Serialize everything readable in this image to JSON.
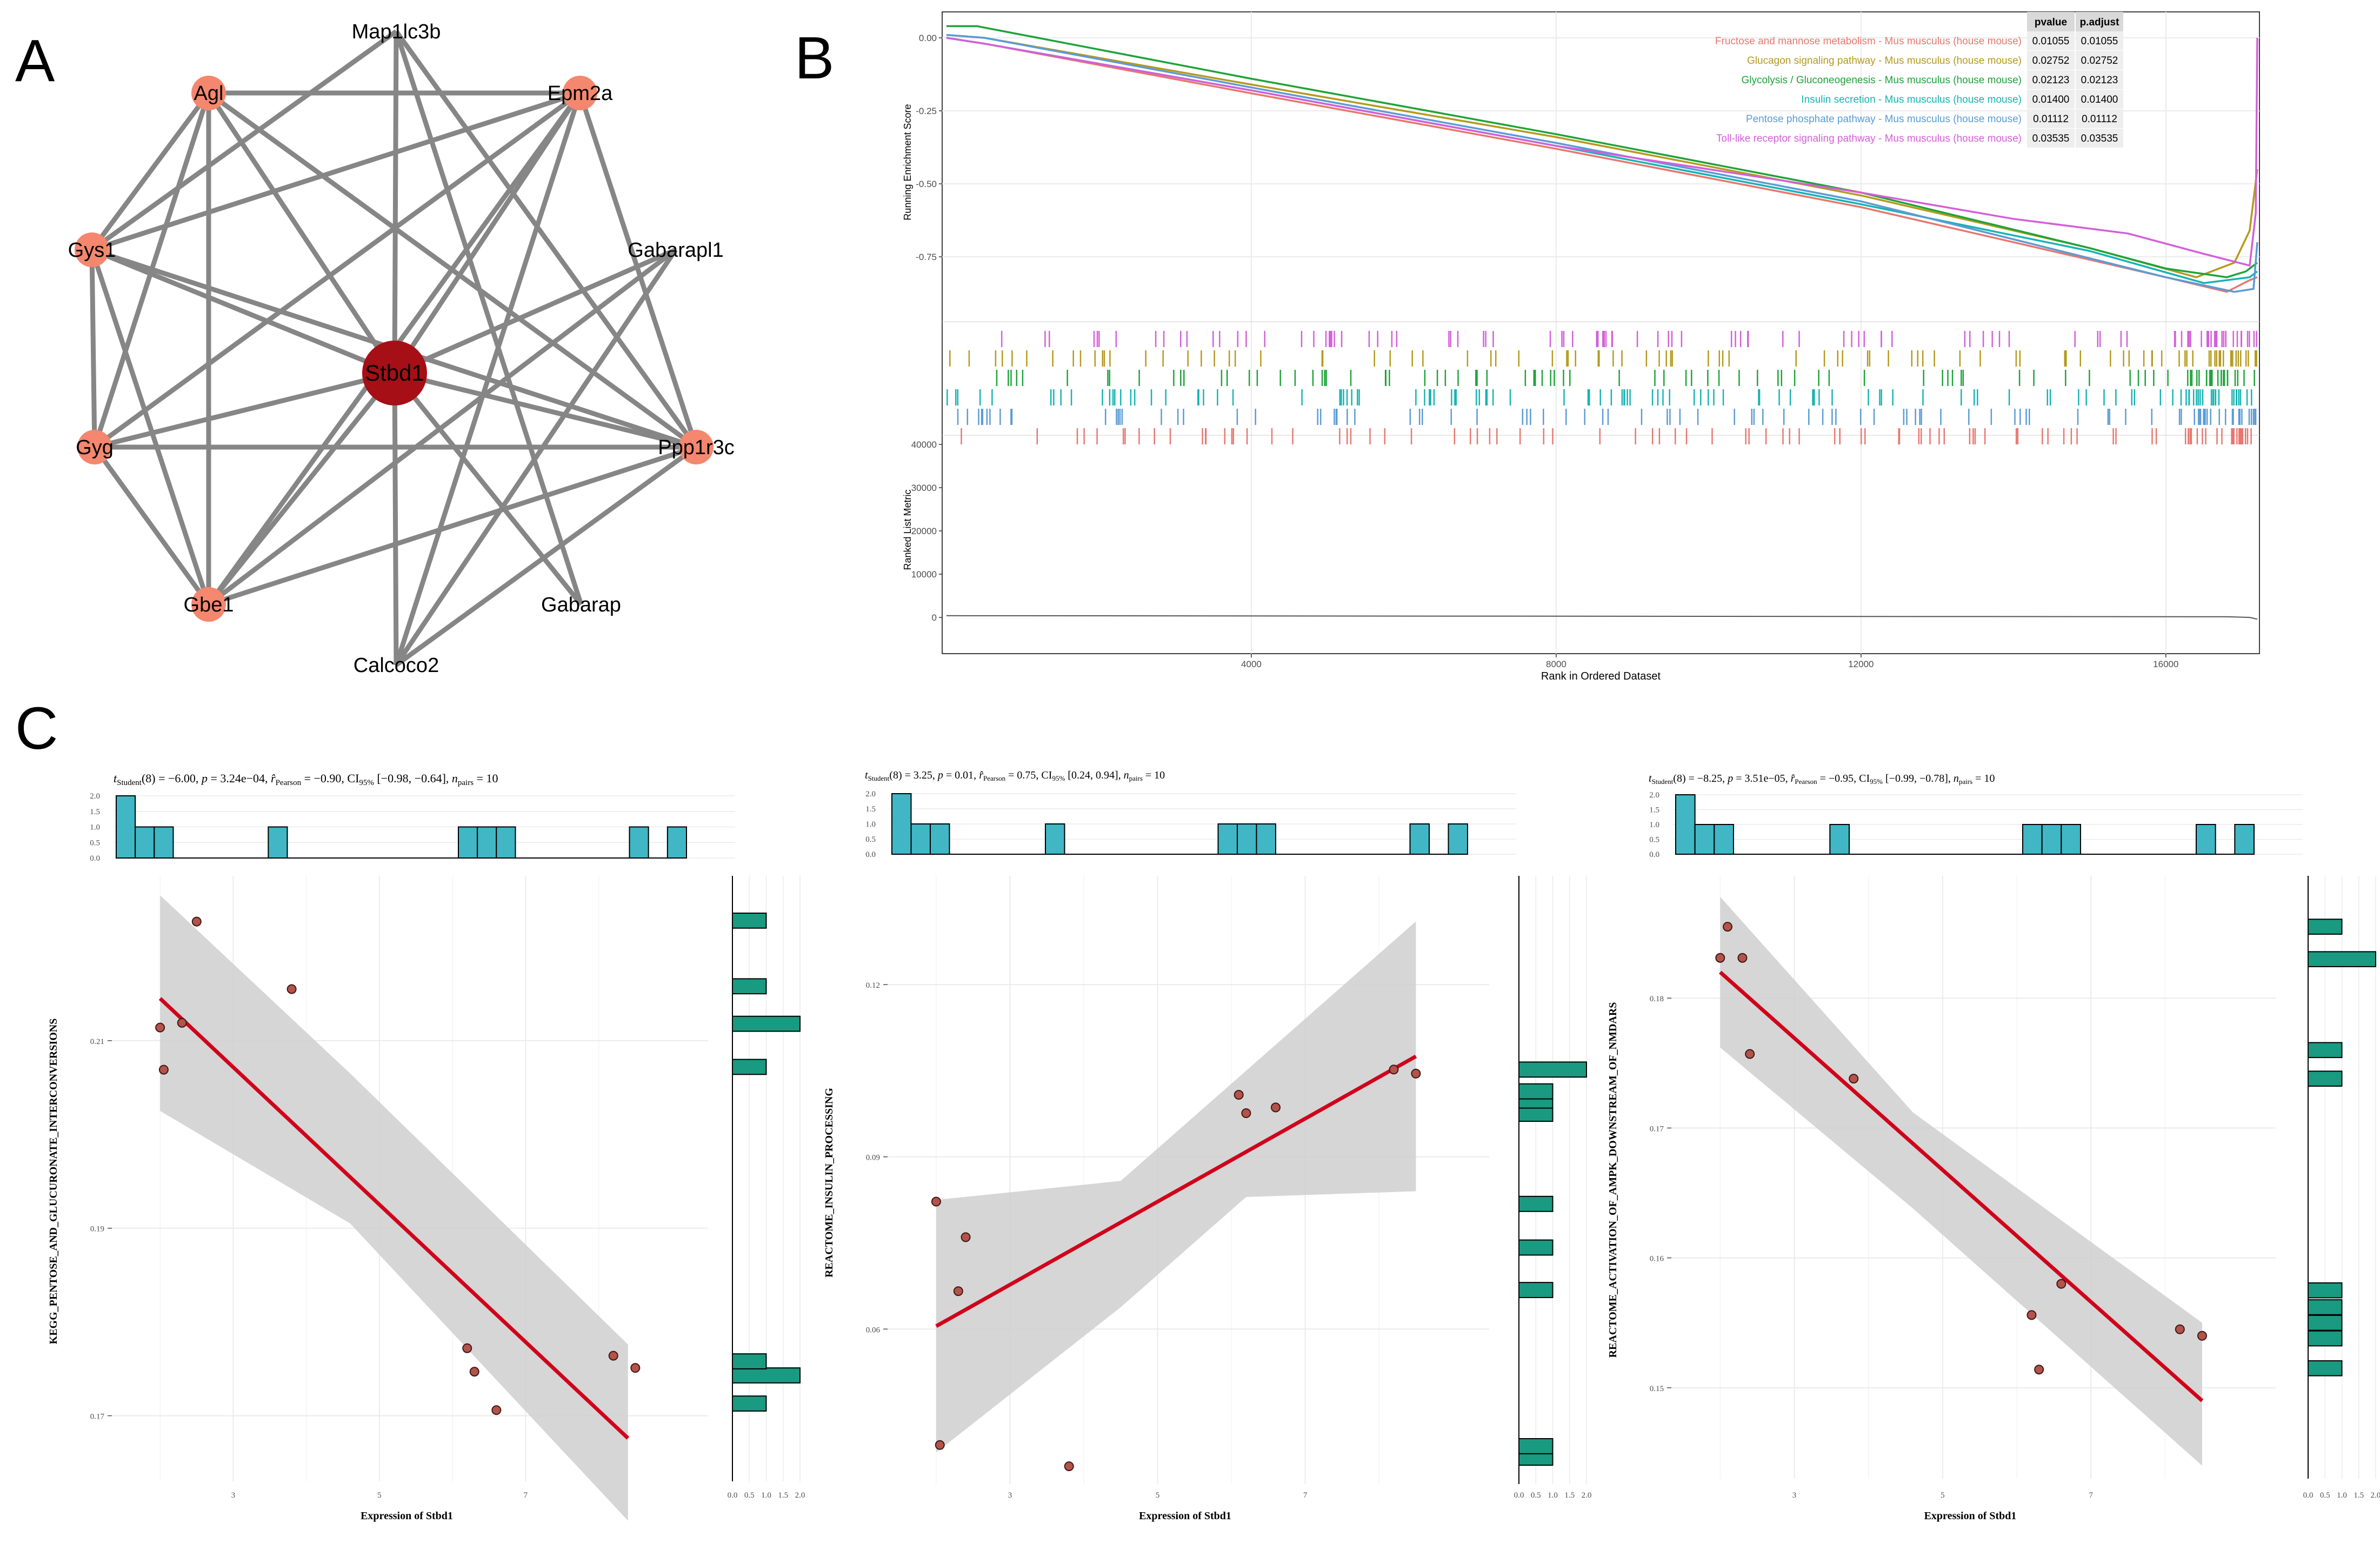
{
  "panels": {
    "a": "A",
    "b": "B",
    "c": "C"
  },
  "network": {
    "hub": "Stbd1",
    "nodes": [
      {
        "id": "Map1lc3b",
        "marker": false,
        "color": "#f4876e"
      },
      {
        "id": "Agl",
        "marker": true,
        "color": "#f4876e"
      },
      {
        "id": "Epm2a",
        "marker": true,
        "color": "#f4876e"
      },
      {
        "id": "Gys1",
        "marker": true,
        "color": "#f4876e"
      },
      {
        "id": "Gabarapl1",
        "marker": false,
        "color": "#f4876e"
      },
      {
        "id": "Stbd1",
        "marker": true,
        "color": "#a50f15"
      },
      {
        "id": "Gyg",
        "marker": true,
        "color": "#f4876e"
      },
      {
        "id": "Ppp1r3c",
        "marker": true,
        "color": "#f4876e"
      },
      {
        "id": "Gbe1",
        "marker": true,
        "color": "#f4876e"
      },
      {
        "id": "Gabarap",
        "marker": false,
        "color": "#f4876e"
      },
      {
        "id": "Calcoco2",
        "marker": false,
        "color": "#f4876e"
      }
    ],
    "edges": [
      [
        "Agl",
        "Epm2a"
      ],
      [
        "Agl",
        "Gys1"
      ],
      [
        "Agl",
        "Gyg"
      ],
      [
        "Agl",
        "Gbe1"
      ],
      [
        "Agl",
        "Stbd1"
      ],
      [
        "Agl",
        "Ppp1r3c"
      ],
      [
        "Map1lc3b",
        "Stbd1"
      ],
      [
        "Map1lc3b",
        "Gys1"
      ],
      [
        "Map1lc3b",
        "Ppp1r3c"
      ],
      [
        "Map1lc3b",
        "Gabarap"
      ],
      [
        "Epm2a",
        "Gys1"
      ],
      [
        "Epm2a",
        "Gyg"
      ],
      [
        "Epm2a",
        "Gbe1"
      ],
      [
        "Epm2a",
        "Stbd1"
      ],
      [
        "Epm2a",
        "Ppp1r3c"
      ],
      [
        "Epm2a",
        "Calcoco2"
      ],
      [
        "Gys1",
        "Gyg"
      ],
      [
        "Gys1",
        "Gbe1"
      ],
      [
        "Gys1",
        "Stbd1"
      ],
      [
        "Gys1",
        "Ppp1r3c"
      ],
      [
        "Gabarapl1",
        "Stbd1"
      ],
      [
        "Gabarapl1",
        "Gbe1"
      ],
      [
        "Gabarapl1",
        "Calcoco2"
      ],
      [
        "Gyg",
        "Gbe1"
      ],
      [
        "Gyg",
        "Stbd1"
      ],
      [
        "Gyg",
        "Ppp1r3c"
      ],
      [
        "Stbd1",
        "Ppp1r3c"
      ],
      [
        "Stbd1",
        "Gbe1"
      ],
      [
        "Stbd1",
        "Gabarap"
      ],
      [
        "Stbd1",
        "Calcoco2"
      ],
      [
        "Ppp1r3c",
        "Gbe1"
      ],
      [
        "Ppp1r3c",
        "Calcoco2"
      ]
    ]
  },
  "gsea": {
    "y_label": "Running Enrichment Score",
    "y_ticks": [
      "0.00",
      "-0.25",
      "-0.50",
      "-0.75"
    ],
    "table_headers": [
      "pvalue",
      "p.adjust"
    ],
    "metric_label": "Ranked List Metric",
    "metric_ticks": [
      "40000",
      "30000",
      "20000",
      "10000",
      "0"
    ],
    "x_label": "Rank in Ordered Dataset",
    "x_ticks": [
      "4000",
      "8000",
      "12000",
      "16000"
    ]
  },
  "chart_data": [
    {
      "type": "line",
      "title": "",
      "xlabel": "Rank in Ordered Dataset",
      "ylabel": "Running Enrichment Score",
      "xlim": [
        0,
        17200
      ],
      "ylim": [
        -0.92,
        0.05
      ],
      "series": [
        {
          "name": "Fructose and mannose metabolism - Mus musculus (house mouse)",
          "pvalue": "0.01055",
          "padjust": "0.01055",
          "color": "#e8776f",
          "points": [
            [
              0,
              0
            ],
            [
              500,
              -0.02
            ],
            [
              4000,
              -0.19
            ],
            [
              8000,
              -0.38
            ],
            [
              12000,
              -0.58
            ],
            [
              16000,
              -0.82
            ],
            [
              16800,
              -0.87
            ],
            [
              17100,
              -0.83
            ],
            [
              17200,
              -0.82
            ]
          ]
        },
        {
          "name": "Glucagon signaling pathway - Mus musculus (house mouse)",
          "pvalue": "0.02752",
          "padjust": "0.02752",
          "color": "#b59a1d",
          "points": [
            [
              0,
              0.01
            ],
            [
              500,
              0.0
            ],
            [
              4000,
              -0.16
            ],
            [
              8000,
              -0.34
            ],
            [
              12000,
              -0.54
            ],
            [
              15000,
              -0.72
            ],
            [
              16400,
              -0.82
            ],
            [
              16900,
              -0.77
            ],
            [
              17100,
              -0.66
            ],
            [
              17200,
              -0.45
            ]
          ]
        },
        {
          "name": "Glycolysis / Gluconeogenesis - Mus musculus (house mouse)",
          "pvalue": "0.02123",
          "padjust": "0.02123",
          "color": "#1fa33a",
          "points": [
            [
              0,
              0.04
            ],
            [
              400,
              0.04
            ],
            [
              4000,
              -0.14
            ],
            [
              8000,
              -0.33
            ],
            [
              12000,
              -0.53
            ],
            [
              15000,
              -0.72
            ],
            [
              16000,
              -0.79
            ],
            [
              16800,
              -0.82
            ],
            [
              17050,
              -0.8
            ],
            [
              17200,
              -0.77
            ]
          ]
        },
        {
          "name": "Insulin secretion - Mus musculus (house mouse)",
          "pvalue": "0.01400",
          "padjust": "0.01400",
          "color": "#17b3b3",
          "points": [
            [
              0,
              0
            ],
            [
              500,
              -0.02
            ],
            [
              4000,
              -0.18
            ],
            [
              8000,
              -0.37
            ],
            [
              12000,
              -0.57
            ],
            [
              15000,
              -0.73
            ],
            [
              16500,
              -0.84
            ],
            [
              17100,
              -0.82
            ],
            [
              17200,
              -0.8
            ]
          ]
        },
        {
          "name": "Pentose phosphate pathway - Mus musculus (house mouse)",
          "pvalue": "0.01112",
          "padjust": "0.01112",
          "color": "#5b9bd5",
          "points": [
            [
              0,
              0.01
            ],
            [
              500,
              0.0
            ],
            [
              4000,
              -0.17
            ],
            [
              8000,
              -0.36
            ],
            [
              12000,
              -0.56
            ],
            [
              16000,
              -0.82
            ],
            [
              16900,
              -0.87
            ],
            [
              17150,
              -0.86
            ],
            [
              17200,
              -0.7
            ]
          ]
        },
        {
          "name": "Toll-like receptor signaling pathway - Mus musculus (house mouse)",
          "pvalue": "0.03535",
          "padjust": "0.03535",
          "color": "#d45fd8",
          "points": [
            [
              0,
              0
            ],
            [
              500,
              -0.02
            ],
            [
              4000,
              -0.18
            ],
            [
              8000,
              -0.37
            ],
            [
              12000,
              -0.53
            ],
            [
              14000,
              -0.62
            ],
            [
              15500,
              -0.67
            ],
            [
              16500,
              -0.74
            ],
            [
              17100,
              -0.78
            ],
            [
              17180,
              -0.6
            ],
            [
              17200,
              0.0
            ]
          ]
        }
      ]
    },
    {
      "type": "scatter",
      "title_html": "<tspan font-style='italic'>t</tspan><tspan font-size='15' dy='5'>Student</tspan><tspan dy='-5'>(8) = −6.00, </tspan><tspan font-style='italic'>p</tspan><tspan> = 3.24e−04, </tspan><tspan font-style='italic'>r̂</tspan><tspan font-size='15' dy='5'>Pearson</tspan><tspan dy='-5'> = −0.90, CI</tspan><tspan font-size='15' dy='5'>95%</tspan><tspan dy='-5'> [−0.98, −0.64], </tspan><tspan font-style='italic'>n</tspan><tspan font-size='15' dy='5'>pairs</tspan><tspan dy='-5'> = 10</tspan>",
      "xlabel": "Expression of Stbd1",
      "ylabel": "KEGG_PENTOSE_AND_GLUCURONATE_INTERCONVERSIONS",
      "xlim": [
        1.4,
        9.2
      ],
      "ylim": [
        0.163,
        0.227
      ],
      "x_ticks": [
        3,
        5,
        7
      ],
      "y_ticks": [
        0.17,
        0.19,
        0.21
      ],
      "y_tick_labels": [
        "0.17",
        "0.19",
        "0.21"
      ],
      "x": [
        2.0,
        2.05,
        2.3,
        2.5,
        3.8,
        6.2,
        6.3,
        6.6,
        8.2,
        8.5
      ],
      "y": [
        0.2114,
        0.2069,
        0.2119,
        0.2227,
        0.2155,
        0.1772,
        0.1747,
        0.1706,
        0.1764,
        0.1751
      ],
      "fit": [
        [
          2.0,
          0.2145
        ],
        [
          8.4,
          0.1676
        ]
      ],
      "band": {
        "upper": [
          [
            2.0,
            0.2255
          ],
          [
            4.6,
            0.2065
          ],
          [
            8.4,
            0.1776
          ]
        ],
        "lower": [
          [
            2.0,
            0.2025
          ],
          [
            4.6,
            0.1905
          ],
          [
            8.4,
            0.1588
          ]
        ]
      },
      "top_hist": [
        2,
        1,
        1,
        0,
        0,
        0,
        0,
        0,
        1,
        0,
        0,
        0,
        0,
        0,
        0,
        0,
        0,
        0,
        1,
        1,
        1,
        0,
        0,
        0,
        0,
        0,
        0,
        1,
        0,
        1
      ],
      "top_hist_ticks": [
        "0.0",
        "0.5",
        "1.0",
        "1.5",
        "2.0"
      ],
      "side_hist": [
        {
          "y": 0.1713,
          "c": 1
        },
        {
          "y": 0.1743,
          "c": 2
        },
        {
          "y": 0.1758,
          "c": 1
        },
        {
          "y": 0.2072,
          "c": 1
        },
        {
          "y": 0.2118,
          "c": 2
        },
        {
          "y": 0.2158,
          "c": 1
        },
        {
          "y": 0.2228,
          "c": 1
        }
      ],
      "side_hist_ticks": [
        "0.0",
        "0.5",
        "1.0",
        "1.5",
        "2.0"
      ]
    },
    {
      "type": "scatter",
      "title_html": "<tspan font-style='italic'>t</tspan><tspan font-size='13' dy='4'>Student</tspan><tspan dy='-4'>(8) = 3.25, </tspan><tspan font-style='italic'>p</tspan><tspan> = 0.01, </tspan><tspan font-style='italic'>r̂</tspan><tspan font-size='13' dy='4'>Pearson</tspan><tspan dy='-4'> = 0.75, CI</tspan><tspan font-size='13' dy='4'>95%</tspan><tspan dy='-4'> [0.24, 0.94], </tspan><tspan font-style='italic'>n</tspan><tspan font-size='13' dy='4'>pairs</tspan><tspan dy='-4'> = 10</tspan>",
      "xlabel": "Expression of Stbd1",
      "ylabel": "REACTOME_INSULIN_PROCESSING",
      "xlim": [
        1.4,
        9.2
      ],
      "ylim": [
        0.033,
        0.138
      ],
      "x_ticks": [
        3,
        5,
        7
      ],
      "y_ticks": [
        0.06,
        0.09,
        0.12
      ],
      "y_tick_labels": [
        "0.06",
        "0.09",
        "0.12"
      ],
      "x": [
        2.0,
        2.05,
        2.3,
        2.4,
        3.8,
        6.1,
        6.2,
        6.6,
        8.2,
        8.5
      ],
      "y": [
        0.0822,
        0.0398,
        0.0666,
        0.076,
        0.0361,
        0.1008,
        0.0976,
        0.0986,
        0.1052,
        0.1045
      ],
      "fit": [
        [
          2.0,
          0.0605
        ],
        [
          8.5,
          0.1075
        ]
      ],
      "band": {
        "upper": [
          [
            2.0,
            0.0825
          ],
          [
            4.5,
            0.0858
          ],
          [
            6.2,
            0.105
          ],
          [
            8.5,
            0.131
          ]
        ],
        "lower": [
          [
            2.0,
            0.0385
          ],
          [
            4.5,
            0.0638
          ],
          [
            6.2,
            0.083
          ],
          [
            8.5,
            0.084
          ]
        ]
      },
      "top_hist": [
        2,
        1,
        1,
        0,
        0,
        0,
        0,
        0,
        1,
        0,
        0,
        0,
        0,
        0,
        0,
        0,
        0,
        1,
        1,
        1,
        0,
        0,
        0,
        0,
        0,
        0,
        0,
        1,
        0,
        1
      ],
      "top_hist_ticks": [
        "0.0",
        "0.5",
        "1.0",
        "1.5",
        "2.0"
      ],
      "side_hist": [
        {
          "y": 0.0376,
          "c": 1
        },
        {
          "y": 0.0396,
          "c": 1
        },
        {
          "y": 0.0668,
          "c": 1
        },
        {
          "y": 0.0742,
          "c": 1
        },
        {
          "y": 0.0818,
          "c": 1
        },
        {
          "y": 0.0975,
          "c": 1
        },
        {
          "y": 0.0998,
          "c": 1
        },
        {
          "y": 0.1014,
          "c": 1
        },
        {
          "y": 0.1052,
          "c": 2
        }
      ],
      "side_hist_ticks": [
        "0.0",
        "0.5",
        "1.0",
        "1.5",
        "2.0"
      ]
    },
    {
      "type": "scatter",
      "title_html": "<tspan font-style='italic'>t</tspan><tspan font-size='13' dy='4'>Student</tspan><tspan dy='-4'>(8) = −8.25, </tspan><tspan font-style='italic'>p</tspan><tspan> = 3.51e−05, </tspan><tspan font-style='italic'>r̂</tspan><tspan font-size='13' dy='4'>Pearson</tspan><tspan dy='-4'> = −0.95, CI</tspan><tspan font-size='13' dy='4'>95%</tspan><tspan dy='-4'> [−0.99, −0.78], </tspan><tspan font-style='italic'>n</tspan><tspan font-size='13' dy='4'>pairs</tspan><tspan dy='-4'> = 10</tspan>",
      "xlabel": "Expression of Stbd1",
      "ylabel": "REACTOME_ACTIVATION_OF_AMPK_DOWNSTREAM_OF_NMDARS",
      "xlim": [
        1.4,
        9.2
      ],
      "ylim": [
        0.143,
        0.189
      ],
      "x_ticks": [
        3,
        5,
        7
      ],
      "y_ticks": [
        0.15,
        0.16,
        0.17,
        0.18
      ],
      "y_tick_labels": [
        "0.15",
        "0.16",
        "0.17",
        "0.18"
      ],
      "x": [
        2.0,
        2.1,
        2.3,
        2.4,
        3.8,
        6.2,
        6.3,
        6.6,
        8.2,
        8.5
      ],
      "y": [
        0.1831,
        0.1855,
        0.1831,
        0.1757,
        0.1738,
        0.1556,
        0.1514,
        0.158,
        0.1545,
        0.154
      ],
      "fit": [
        [
          2.0,
          0.182
        ],
        [
          8.5,
          0.149
        ]
      ],
      "band": {
        "upper": [
          [
            2.0,
            0.1878
          ],
          [
            4.6,
            0.1712
          ],
          [
            8.5,
            0.155
          ]
        ],
        "lower": [
          [
            2.0,
            0.1762
          ],
          [
            4.6,
            0.1638
          ],
          [
            8.5,
            0.144
          ]
        ]
      },
      "top_hist": [
        2,
        1,
        1,
        0,
        0,
        0,
        0,
        0,
        1,
        0,
        0,
        0,
        0,
        0,
        0,
        0,
        0,
        0,
        1,
        1,
        1,
        0,
        0,
        0,
        0,
        0,
        0,
        1,
        0,
        1
      ],
      "top_hist_ticks": [
        "0.0",
        "0.5",
        "1.0",
        "1.5",
        "2.0"
      ],
      "side_hist": [
        {
          "y": 0.1515,
          "c": 1
        },
        {
          "y": 0.1538,
          "c": 1
        },
        {
          "y": 0.155,
          "c": 1
        },
        {
          "y": 0.1562,
          "c": 1
        },
        {
          "y": 0.1575,
          "c": 1
        },
        {
          "y": 0.1738,
          "c": 1
        },
        {
          "y": 0.176,
          "c": 1
        },
        {
          "y": 0.183,
          "c": 2
        },
        {
          "y": 0.1855,
          "c": 1
        }
      ],
      "side_hist_ticks": [
        "0.0",
        "0.5",
        "1.0",
        "1.5",
        "2.0"
      ]
    }
  ]
}
